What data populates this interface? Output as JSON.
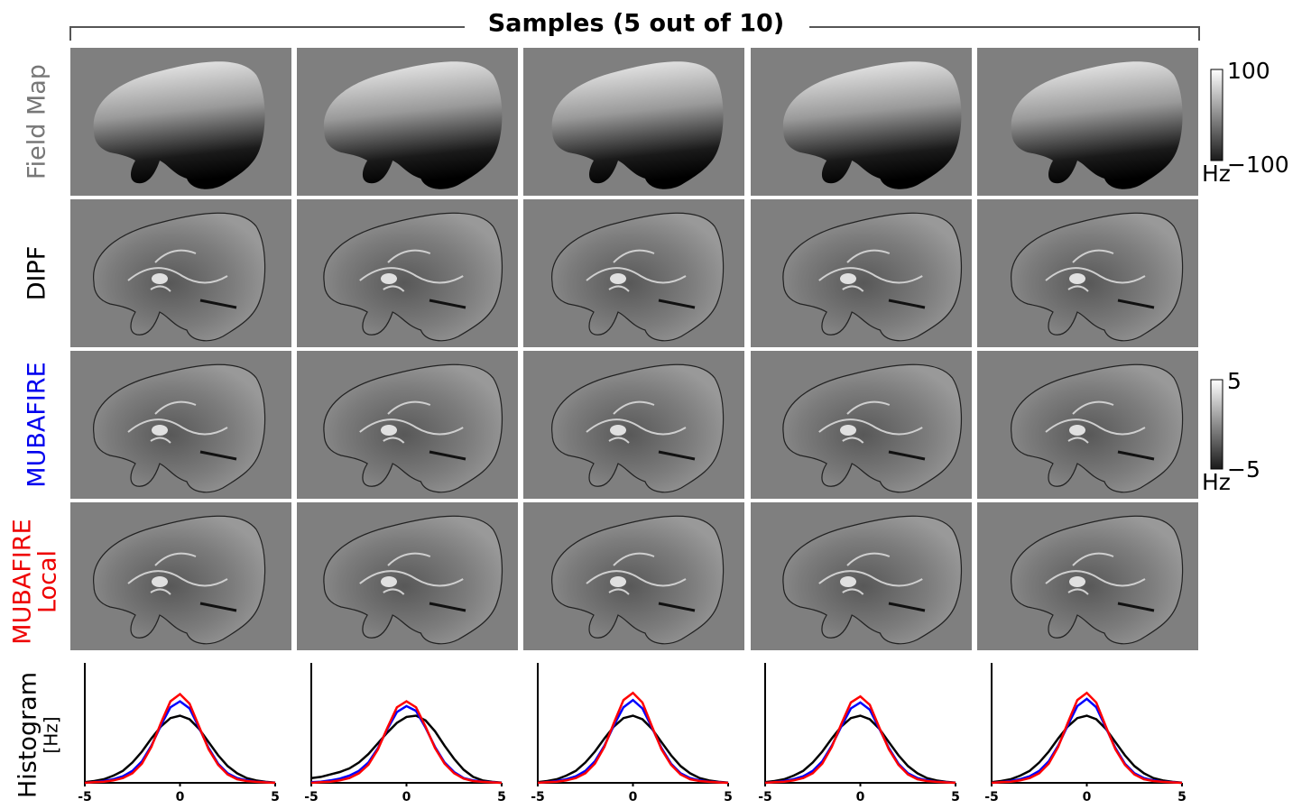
{
  "figure": {
    "title": "Samples (5 out of 10)",
    "rows": {
      "field_map": "Field Map",
      "dipf": "DIPF",
      "mubafire": "MUBAFIRE",
      "local_1": "MUBAFIRE",
      "local_2": "Local",
      "hist_1": "Histogram",
      "hist_2": "[Hz]"
    },
    "colorbars": [
      {
        "max": "100",
        "min": "−100",
        "unit": "Hz"
      },
      {
        "max": "5",
        "min": "−5",
        "unit": "Hz"
      }
    ]
  },
  "chart_data": [
    {
      "type": "line",
      "x": [
        -5,
        -4.5,
        -4,
        -3.5,
        -3,
        -2.5,
        -2,
        -1.5,
        -1,
        -0.5,
        0,
        0.5,
        1,
        1.5,
        2,
        2.5,
        3,
        3.5,
        4,
        4.5,
        5
      ],
      "xlim": [
        -5,
        5
      ],
      "xticks": [
        -5,
        0,
        5
      ],
      "ylim": [
        0,
        1
      ],
      "series": [
        {
          "color": "#000000",
          "values": [
            0.005,
            0.015,
            0.03,
            0.06,
            0.1,
            0.17,
            0.26,
            0.37,
            0.47,
            0.54,
            0.56,
            0.53,
            0.45,
            0.34,
            0.23,
            0.14,
            0.08,
            0.04,
            0.02,
            0.008,
            0.002
          ]
        },
        {
          "color": "#0000ff",
          "values": [
            0,
            0.007,
            0.015,
            0.03,
            0.055,
            0.1,
            0.18,
            0.31,
            0.48,
            0.63,
            0.68,
            0.62,
            0.46,
            0.29,
            0.16,
            0.08,
            0.04,
            0.02,
            0.01,
            0.005,
            0
          ]
        },
        {
          "color": "#ff0000",
          "values": [
            0,
            0.005,
            0.01,
            0.02,
            0.04,
            0.08,
            0.16,
            0.3,
            0.5,
            0.68,
            0.74,
            0.66,
            0.47,
            0.28,
            0.15,
            0.07,
            0.03,
            0.015,
            0.008,
            0.004,
            0
          ]
        }
      ]
    },
    {
      "type": "line",
      "x": [
        -5,
        -4.5,
        -4,
        -3.5,
        -3,
        -2.5,
        -2,
        -1.5,
        -1,
        -0.5,
        0,
        0.5,
        1,
        1.5,
        2,
        2.5,
        3,
        3.5,
        4,
        4.5,
        5
      ],
      "xlim": [
        -5,
        5
      ],
      "xticks": [
        -5,
        0,
        5
      ],
      "ylim": [
        0,
        1
      ],
      "series": [
        {
          "color": "#000000",
          "values": [
            0.04,
            0.05,
            0.07,
            0.09,
            0.12,
            0.17,
            0.24,
            0.33,
            0.42,
            0.5,
            0.55,
            0.56,
            0.52,
            0.43,
            0.31,
            0.2,
            0.11,
            0.05,
            0.02,
            0.008,
            0.002
          ]
        },
        {
          "color": "#0000ff",
          "values": [
            0.005,
            0.01,
            0.02,
            0.035,
            0.06,
            0.1,
            0.17,
            0.29,
            0.45,
            0.59,
            0.64,
            0.6,
            0.46,
            0.3,
            0.17,
            0.09,
            0.04,
            0.02,
            0.01,
            0.005,
            0
          ]
        },
        {
          "color": "#ff0000",
          "values": [
            0,
            0.005,
            0.01,
            0.02,
            0.04,
            0.08,
            0.15,
            0.28,
            0.46,
            0.63,
            0.68,
            0.63,
            0.47,
            0.29,
            0.16,
            0.08,
            0.035,
            0.015,
            0.008,
            0.004,
            0
          ]
        }
      ]
    },
    {
      "type": "line",
      "x": [
        -5,
        -4.5,
        -4,
        -3.5,
        -3,
        -2.5,
        -2,
        -1.5,
        -1,
        -0.5,
        0,
        0.5,
        1,
        1.5,
        2,
        2.5,
        3,
        3.5,
        4,
        4.5,
        5
      ],
      "xlim": [
        -5,
        5
      ],
      "xticks": [
        -5,
        0,
        5
      ],
      "ylim": [
        0,
        1
      ],
      "series": [
        {
          "color": "#000000",
          "values": [
            0.005,
            0.015,
            0.03,
            0.06,
            0.1,
            0.17,
            0.26,
            0.37,
            0.47,
            0.54,
            0.56,
            0.53,
            0.45,
            0.34,
            0.23,
            0.14,
            0.08,
            0.04,
            0.02,
            0.008,
            0.002
          ]
        },
        {
          "color": "#0000ff",
          "values": [
            0,
            0.007,
            0.015,
            0.03,
            0.055,
            0.1,
            0.18,
            0.31,
            0.48,
            0.63,
            0.69,
            0.62,
            0.46,
            0.29,
            0.16,
            0.08,
            0.04,
            0.02,
            0.01,
            0.005,
            0
          ]
        },
        {
          "color": "#ff0000",
          "values": [
            0,
            0.005,
            0.01,
            0.02,
            0.04,
            0.08,
            0.16,
            0.3,
            0.5,
            0.69,
            0.75,
            0.67,
            0.47,
            0.28,
            0.15,
            0.07,
            0.03,
            0.015,
            0.008,
            0.004,
            0
          ]
        }
      ]
    },
    {
      "type": "line",
      "x": [
        -5,
        -4.5,
        -4,
        -3.5,
        -3,
        -2.5,
        -2,
        -1.5,
        -1,
        -0.5,
        0,
        0.5,
        1,
        1.5,
        2,
        2.5,
        3,
        3.5,
        4,
        4.5,
        5
      ],
      "xlim": [
        -5,
        5
      ],
      "xticks": [
        -5,
        0,
        5
      ],
      "ylim": [
        0,
        1
      ],
      "series": [
        {
          "color": "#000000",
          "values": [
            0.005,
            0.015,
            0.03,
            0.06,
            0.1,
            0.17,
            0.26,
            0.37,
            0.47,
            0.54,
            0.56,
            0.53,
            0.45,
            0.34,
            0.23,
            0.14,
            0.08,
            0.04,
            0.02,
            0.008,
            0.002
          ]
        },
        {
          "color": "#0000ff",
          "values": [
            0,
            0.007,
            0.015,
            0.03,
            0.055,
            0.1,
            0.18,
            0.31,
            0.47,
            0.62,
            0.67,
            0.61,
            0.45,
            0.29,
            0.16,
            0.08,
            0.04,
            0.02,
            0.01,
            0.005,
            0
          ]
        },
        {
          "color": "#ff0000",
          "values": [
            0,
            0.005,
            0.01,
            0.02,
            0.04,
            0.08,
            0.16,
            0.3,
            0.49,
            0.67,
            0.72,
            0.65,
            0.46,
            0.28,
            0.15,
            0.07,
            0.03,
            0.015,
            0.008,
            0.004,
            0
          ]
        }
      ]
    },
    {
      "type": "line",
      "x": [
        -5,
        -4.5,
        -4,
        -3.5,
        -3,
        -2.5,
        -2,
        -1.5,
        -1,
        -0.5,
        0,
        0.5,
        1,
        1.5,
        2,
        2.5,
        3,
        3.5,
        4,
        4.5,
        5
      ],
      "xlim": [
        -5,
        5
      ],
      "xticks": [
        -5,
        0,
        5
      ],
      "ylim": [
        0,
        1
      ],
      "series": [
        {
          "color": "#000000",
          "values": [
            0.005,
            0.015,
            0.03,
            0.06,
            0.1,
            0.17,
            0.26,
            0.37,
            0.47,
            0.54,
            0.56,
            0.53,
            0.45,
            0.34,
            0.23,
            0.14,
            0.08,
            0.04,
            0.02,
            0.008,
            0.002
          ]
        },
        {
          "color": "#0000ff",
          "values": [
            0,
            0.007,
            0.015,
            0.03,
            0.055,
            0.1,
            0.18,
            0.31,
            0.48,
            0.64,
            0.7,
            0.63,
            0.46,
            0.29,
            0.16,
            0.08,
            0.04,
            0.02,
            0.01,
            0.005,
            0
          ]
        },
        {
          "color": "#ff0000",
          "values": [
            0,
            0.005,
            0.01,
            0.02,
            0.04,
            0.08,
            0.16,
            0.3,
            0.5,
            0.69,
            0.75,
            0.67,
            0.47,
            0.28,
            0.15,
            0.07,
            0.03,
            0.015,
            0.008,
            0.004,
            0
          ]
        }
      ]
    }
  ]
}
